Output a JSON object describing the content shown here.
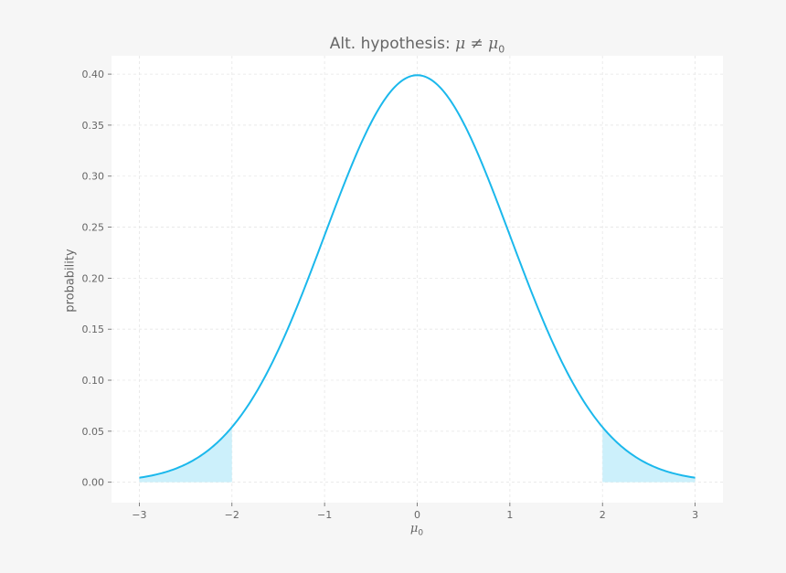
{
  "chart_data": {
    "type": "area",
    "title_prefix": "Alt. hypothesis: ",
    "title_math": "μ ≠ μ",
    "title_sub": "0",
    "xlabel_main": "μ",
    "xlabel_sub": "0",
    "ylabel": "probability",
    "xlim": [
      -3.3,
      3.3
    ],
    "ylim": [
      -0.02,
      0.418
    ],
    "x_ticks": [
      -3,
      -2,
      -1,
      0,
      1,
      2,
      3
    ],
    "x_tick_labels": [
      "−3",
      "−2",
      "−1",
      "0",
      "1",
      "2",
      "3"
    ],
    "y_ticks": [
      0.0,
      0.05,
      0.1,
      0.15,
      0.2,
      0.25,
      0.3,
      0.35,
      0.4
    ],
    "y_tick_labels": [
      "0.00",
      "0.05",
      "0.10",
      "0.15",
      "0.20",
      "0.25",
      "0.30",
      "0.35",
      "0.40"
    ],
    "grid": true,
    "series": [
      {
        "x": [
          -3.0,
          -2.75,
          -2.5,
          -2.25,
          -2.0,
          -1.75,
          -1.5,
          -1.25,
          -1.0,
          -0.75,
          -0.5,
          -0.25,
          0.0,
          0.25,
          0.5,
          0.75,
          1.0,
          1.25,
          1.5,
          1.75,
          2.0,
          2.25,
          2.5,
          2.75,
          3.0
        ],
        "y": [
          0.0044,
          0.0091,
          0.0175,
          0.0317,
          0.054,
          0.0863,
          0.1295,
          0.1826,
          0.242,
          0.3011,
          0.3521,
          0.3867,
          0.3989,
          0.3867,
          0.3521,
          0.3011,
          0.242,
          0.1826,
          0.1295,
          0.0863,
          0.054,
          0.0317,
          0.0175,
          0.0091,
          0.0044
        ]
      }
    ],
    "shaded_regions": [
      {
        "from": -3,
        "to": -2
      },
      {
        "from": 2,
        "to": 3
      }
    ],
    "colors": {
      "line": "#1bb8ec",
      "fill": "#ccf0fb",
      "grid": "#e6e6e6",
      "axes_bg": "#ffffff",
      "figure_bg": "#f6f6f6",
      "text": "#666666"
    }
  }
}
